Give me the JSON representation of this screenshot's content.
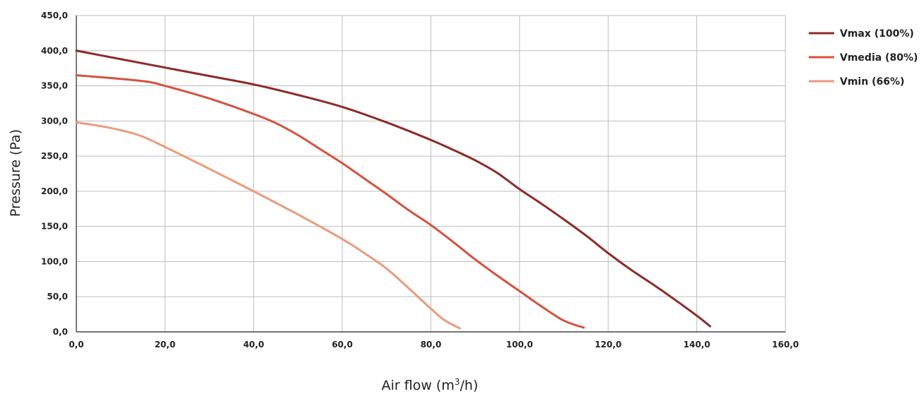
{
  "chart_data": {
    "type": "line",
    "title": "",
    "xlabel": "Air flow (m",
    "xlabel_sup": "3",
    "xlabel_tail": "/h)",
    "ylabel": "Pressure (Pa)",
    "xlim": [
      0,
      160
    ],
    "ylim": [
      0,
      450
    ],
    "x_ticks": [
      0,
      20,
      40,
      60,
      80,
      100,
      120,
      140,
      160
    ],
    "x_tick_labels": [
      "0,0",
      "20,0",
      "40,0",
      "60,0",
      "80,0",
      "100,0",
      "120,0",
      "140,0",
      "160,0"
    ],
    "y_ticks": [
      0,
      50,
      100,
      150,
      200,
      250,
      300,
      350,
      400,
      450
    ],
    "y_tick_labels": [
      "0,0",
      "50,0",
      "100,0",
      "150,0",
      "200,0",
      "250,0",
      "300,0",
      "350,0",
      "400,0",
      "450,0"
    ],
    "grid": true,
    "legend_position": "right",
    "series": [
      {
        "name": "Vmax (100%)",
        "color": "#8e2a2a",
        "points": [
          [
            0,
            400
          ],
          [
            10,
            388
          ],
          [
            20,
            376
          ],
          [
            30,
            364
          ],
          [
            40,
            352
          ],
          [
            50,
            337
          ],
          [
            60,
            320
          ],
          [
            70,
            298
          ],
          [
            80,
            273
          ],
          [
            85,
            259
          ],
          [
            90,
            244
          ],
          [
            95,
            226
          ],
          [
            100,
            203
          ],
          [
            105,
            182
          ],
          [
            110,
            160
          ],
          [
            115,
            137
          ],
          [
            120,
            112
          ],
          [
            125,
            89
          ],
          [
            130,
            68
          ],
          [
            135,
            46
          ],
          [
            140,
            23
          ],
          [
            143,
            8
          ]
        ]
      },
      {
        "name": "Vmedia (80%)",
        "color": "#d4523e",
        "points": [
          [
            0,
            365
          ],
          [
            8,
            361
          ],
          [
            16,
            356
          ],
          [
            20,
            350
          ],
          [
            30,
            332
          ],
          [
            40,
            310
          ],
          [
            45,
            297
          ],
          [
            50,
            280
          ],
          [
            55,
            260
          ],
          [
            60,
            240
          ],
          [
            65,
            218
          ],
          [
            70,
            196
          ],
          [
            75,
            173
          ],
          [
            80,
            152
          ],
          [
            85,
            128
          ],
          [
            90,
            103
          ],
          [
            95,
            80
          ],
          [
            100,
            58
          ],
          [
            105,
            36
          ],
          [
            110,
            16
          ],
          [
            114.5,
            6
          ]
        ]
      },
      {
        "name": "Vmin (66%)",
        "color": "#eb9b7c",
        "points": [
          [
            0,
            298
          ],
          [
            7,
            291
          ],
          [
            14,
            280
          ],
          [
            20,
            263
          ],
          [
            30,
            232
          ],
          [
            40,
            200
          ],
          [
            50,
            167
          ],
          [
            60,
            132
          ],
          [
            65,
            112
          ],
          [
            70,
            90
          ],
          [
            75,
            62
          ],
          [
            80,
            33
          ],
          [
            83,
            17
          ],
          [
            86.5,
            5
          ]
        ]
      }
    ]
  }
}
